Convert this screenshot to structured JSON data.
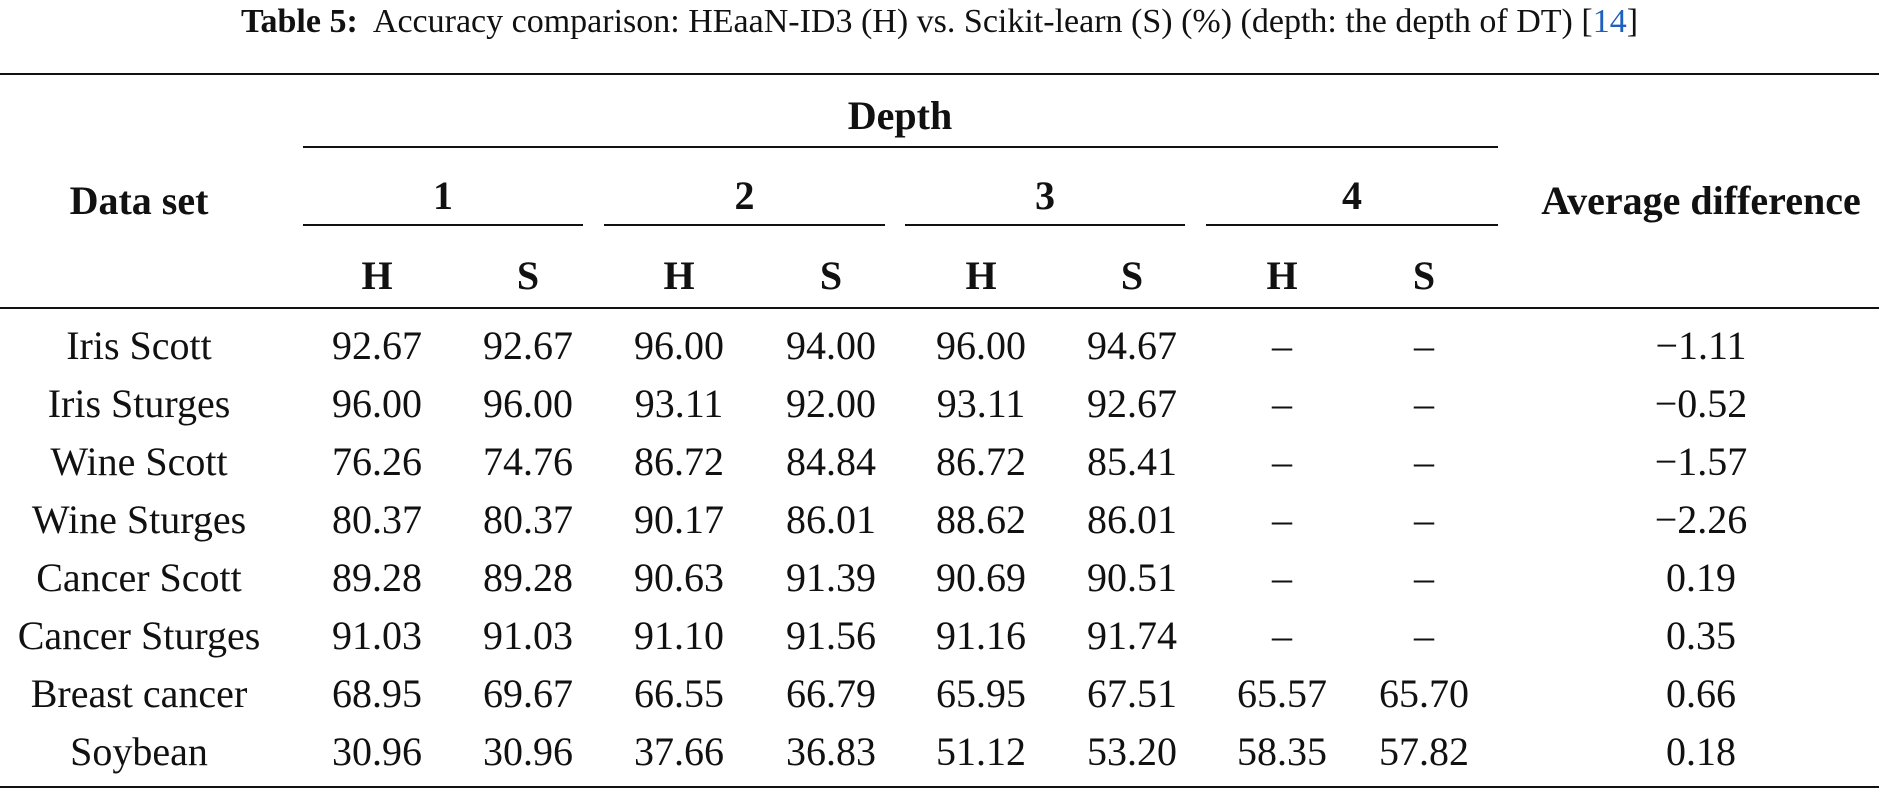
{
  "caption": {
    "label": "Table 5:",
    "text": "Accuracy comparison: HEaaN-ID3 (H) vs. Scikit-learn (S) (%) (depth: the depth of DT) [",
    "ref": "14",
    "close": "]"
  },
  "header": {
    "dataset": "Data set",
    "depth": "Depth",
    "groups": [
      "1",
      "2",
      "3",
      "4"
    ],
    "sub": [
      "H",
      "S",
      "H",
      "S",
      "H",
      "S",
      "H",
      "S"
    ],
    "avg": "Average difference"
  },
  "rows": [
    {
      "name": "Iris Scott",
      "values": [
        "92.67",
        "92.67",
        "96.00",
        "94.00",
        "96.00",
        "94.67",
        "–",
        "–"
      ],
      "avg": "−1.11"
    },
    {
      "name": "Iris Sturges",
      "values": [
        "96.00",
        "96.00",
        "93.11",
        "92.00",
        "93.11",
        "92.67",
        "–",
        "–"
      ],
      "avg": "−0.52"
    },
    {
      "name": "Wine Scott",
      "values": [
        "76.26",
        "74.76",
        "86.72",
        "84.84",
        "86.72",
        "85.41",
        "–",
        "–"
      ],
      "avg": "−1.57"
    },
    {
      "name": "Wine Sturges",
      "values": [
        "80.37",
        "80.37",
        "90.17",
        "86.01",
        "88.62",
        "86.01",
        "–",
        "–"
      ],
      "avg": "−2.26"
    },
    {
      "name": "Cancer Scott",
      "values": [
        "89.28",
        "89.28",
        "90.63",
        "91.39",
        "90.69",
        "90.51",
        "–",
        "–"
      ],
      "avg": "0.19"
    },
    {
      "name": "Cancer Sturges",
      "values": [
        "91.03",
        "91.03",
        "91.10",
        "91.56",
        "91.16",
        "91.74",
        "–",
        "–"
      ],
      "avg": "0.35"
    },
    {
      "name": "Breast cancer",
      "values": [
        "68.95",
        "69.67",
        "66.55",
        "66.79",
        "65.95",
        "67.51",
        "65.57",
        "65.70"
      ],
      "avg": "0.66"
    },
    {
      "name": "Soybean",
      "values": [
        "30.96",
        "30.96",
        "37.66",
        "36.83",
        "51.12",
        "53.20",
        "58.35",
        "57.82"
      ],
      "avg": "0.18"
    }
  ]
}
